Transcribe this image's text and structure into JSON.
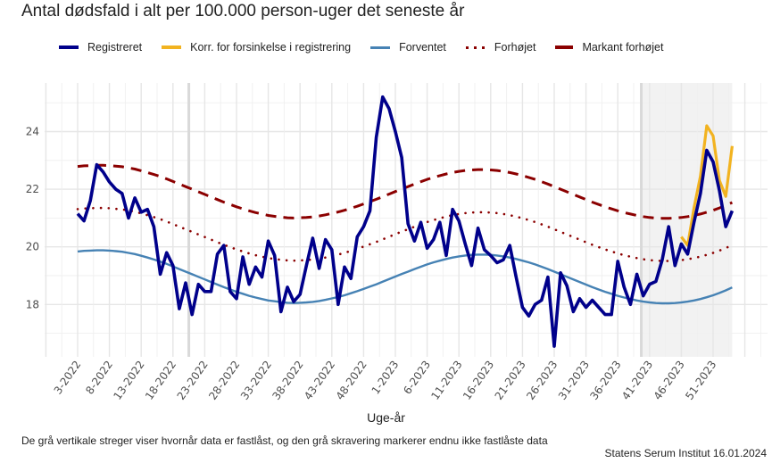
{
  "title": "Antal dødsfald i alt per 100.000 person-uger det seneste år",
  "caption": "De grå vertikale streger viser hvornår data er fastlåst, og den grå skravering markerer endnu ikke fastlåste data",
  "source": "Statens Serum Institut  16.01.2024",
  "legend": [
    {
      "label": "Registreret",
      "color": "#00008B",
      "style": "solid"
    },
    {
      "label": "Korr. for forsinkelse i registrering",
      "color": "#F2B320",
      "style": "solid"
    },
    {
      "label": "Forventet",
      "color": "#4682B4",
      "style": "solid"
    },
    {
      "label": "Forhøjet",
      "color": "#8B0000",
      "style": "dotted"
    },
    {
      "label": "Markant forhøjet",
      "color": "#8B0000",
      "style": "dashed"
    }
  ],
  "chart_data": {
    "type": "line",
    "title": "Antal dødsfald i alt per 100.000 person-uger det seneste år",
    "xlabel": "Uge-år",
    "ylabel": "",
    "ylim": [
      16.2,
      25.6
    ],
    "yticks": [
      18,
      20,
      22,
      24
    ],
    "x_start_week": "3-2022",
    "x_tick_labels": [
      "3-2022",
      "8-2022",
      "13-2022",
      "18-2022",
      "23-2022",
      "28-2022",
      "33-2022",
      "38-2022",
      "43-2022",
      "48-2022",
      "1-2023",
      "6-2023",
      "11-2023",
      "16-2023",
      "21-2023",
      "26-2023",
      "31-2023",
      "36-2023",
      "41-2023",
      "46-2023",
      "51-2023"
    ],
    "x_tick_every": 5,
    "lock_lines_week_index": [
      17.5,
      88.7
    ],
    "shaded_from_week_index": 88.7,
    "shaded_to_week_index": 103,
    "grid": true,
    "legend_position": "top",
    "series": [
      {
        "name": "Registreret",
        "start_index": 0,
        "values": [
          21.15,
          20.9,
          21.6,
          22.85,
          22.6,
          22.25,
          22.0,
          21.85,
          21.0,
          21.7,
          21.2,
          21.3,
          20.7,
          19.05,
          19.8,
          19.35,
          17.85,
          18.75,
          17.65,
          18.7,
          18.45,
          18.45,
          19.75,
          20.05,
          18.45,
          18.2,
          19.65,
          18.7,
          19.3,
          18.95,
          20.2,
          19.7,
          17.75,
          18.6,
          18.1,
          18.35,
          19.35,
          20.3,
          19.25,
          20.25,
          19.9,
          18.0,
          19.3,
          18.9,
          20.35,
          20.7,
          21.25,
          23.8,
          25.2,
          24.8,
          24.0,
          23.1,
          20.8,
          20.2,
          20.85,
          19.95,
          20.25,
          20.85,
          19.7,
          21.3,
          20.9,
          20.1,
          19.35,
          20.65,
          19.9,
          19.7,
          19.45,
          19.55,
          20.05,
          18.95,
          17.9,
          17.6,
          18.0,
          18.15,
          18.95,
          16.55,
          19.1,
          18.65,
          17.75,
          18.2,
          17.9,
          18.15,
          17.9,
          17.65,
          17.65,
          19.5,
          18.6,
          18.0,
          19.05,
          18.3,
          18.7,
          18.8,
          19.55,
          20.7,
          19.35,
          20.1,
          19.75,
          20.85,
          21.85,
          23.35,
          22.95,
          21.95,
          20.7,
          21.25
        ]
      },
      {
        "name": "Korr. for forsinkelse i registrering",
        "start_index": 95,
        "values": [
          20.35,
          20.05,
          21.35,
          22.45,
          24.2,
          23.85,
          22.3,
          21.75,
          23.5
        ]
      },
      {
        "name": "Forventet",
        "start_index": 0,
        "values": [
          19.84,
          19.86,
          19.87,
          19.88,
          19.88,
          19.87,
          19.85,
          19.83,
          19.79,
          19.75,
          19.69,
          19.63,
          19.56,
          19.49,
          19.41,
          19.32,
          19.23,
          19.14,
          19.05,
          18.96,
          18.87,
          18.78,
          18.69,
          18.6,
          18.52,
          18.44,
          18.37,
          18.3,
          18.24,
          18.19,
          18.14,
          18.11,
          18.08,
          18.06,
          18.05,
          18.06,
          18.07,
          18.09,
          18.12,
          18.16,
          18.21,
          18.26,
          18.32,
          18.39,
          18.46,
          18.54,
          18.62,
          18.7,
          18.79,
          18.88,
          18.97,
          19.06,
          19.14,
          19.23,
          19.31,
          19.39,
          19.46,
          19.52,
          19.58,
          19.63,
          19.67,
          19.7,
          19.72,
          19.73,
          19.73,
          19.72,
          19.7,
          19.67,
          19.63,
          19.58,
          19.52,
          19.46,
          19.39,
          19.31,
          19.23,
          19.14,
          19.05,
          18.96,
          18.87,
          18.78,
          18.69,
          18.6,
          18.52,
          18.44,
          18.37,
          18.3,
          18.24,
          18.19,
          18.14,
          18.1,
          18.07,
          18.05,
          18.04,
          18.04,
          18.05,
          18.07,
          18.1,
          18.14,
          18.19,
          18.25,
          18.32,
          18.4,
          18.49,
          18.59
        ]
      },
      {
        "name": "Forhøjet",
        "start_index": 0,
        "offset_from": "Forventet",
        "offset": 1.47
      },
      {
        "name": "Markant forhøjet",
        "start_index": 0,
        "offset_from": "Forventet",
        "offset": 2.95
      }
    ]
  }
}
